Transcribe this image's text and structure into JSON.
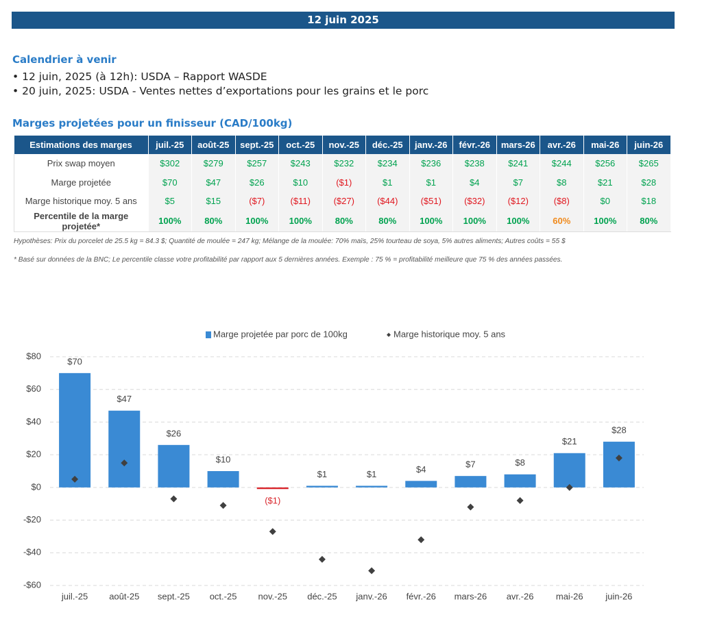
{
  "header": {
    "date": "12 juin 2025"
  },
  "calendar": {
    "title": "Calendrier à venir",
    "items": [
      "12 juin, 2025 (à 12h): USDA – Rapport WASDE",
      "20 juin, 2025: USDA - Ventes nettes d’exportations pour les grains et le porc"
    ]
  },
  "table": {
    "title": "Marges projetées pour un finisseur (CAD/100kg)",
    "columns": [
      "Estimations des marges",
      "juil.-25",
      "août-25",
      "sept.-25",
      "oct.-25",
      "nov.-25",
      "déc.-25",
      "janv.-26",
      "févr.-26",
      "mars-26",
      "avr.-26",
      "mai-26",
      "juin-26"
    ],
    "rows": [
      {
        "label": "Prix swap moyen",
        "cells": [
          "$302",
          "$279",
          "$257",
          "$243",
          "$232",
          "$234",
          "$236",
          "$238",
          "$241",
          "$244",
          "$256",
          "$265"
        ],
        "colors": [
          "#00a24f",
          "#00a24f",
          "#00a24f",
          "#00a24f",
          "#00a24f",
          "#00a24f",
          "#00a24f",
          "#00a24f",
          "#00a24f",
          "#00a24f",
          "#00a24f",
          "#00a24f"
        ]
      },
      {
        "label": "Marge projetée",
        "cells": [
          "$70",
          "$47",
          "$26",
          "$10",
          "($1)",
          "$1",
          "$1",
          "$4",
          "$7",
          "$8",
          "$21",
          "$28"
        ],
        "colors": [
          "#00a24f",
          "#00a24f",
          "#00a24f",
          "#00a24f",
          "#e0161e",
          "#00a24f",
          "#00a24f",
          "#00a24f",
          "#00a24f",
          "#00a24f",
          "#00a24f",
          "#00a24f"
        ]
      },
      {
        "label": "Marge historique moy. 5 ans",
        "cells": [
          "$5",
          "$15",
          "($7)",
          "($11)",
          "($27)",
          "($44)",
          "($51)",
          "($32)",
          "($12)",
          "($8)",
          "$0",
          "$18"
        ],
        "colors": [
          "#00a24f",
          "#00a24f",
          "#e0161e",
          "#e0161e",
          "#e0161e",
          "#e0161e",
          "#e0161e",
          "#e0161e",
          "#e0161e",
          "#e0161e",
          "#00a24f",
          "#00a24f"
        ]
      },
      {
        "label": "Percentile de la marge projetée*",
        "cells": [
          "100%",
          "80%",
          "100%",
          "100%",
          "80%",
          "80%",
          "100%",
          "100%",
          "100%",
          "60%",
          "100%",
          "80%"
        ],
        "colors": [
          "#00a24f",
          "#00a24f",
          "#00a24f",
          "#00a24f",
          "#00a24f",
          "#00a24f",
          "#00a24f",
          "#00a24f",
          "#00a24f",
          "#f08a1c",
          "#00a24f",
          "#00a24f"
        ]
      }
    ]
  },
  "notes": [
    "Hypothèses: Prix du porcelet de 25.5 kg = 84.3 $; Quantité de moulée = 247 kg; Mélange de la moulée: 70% maïs, 25% tourteau de soya, 5% autres aliments; Autres coûts = 55 $",
    "* Basé sur données de la BNC; Le percentile classe votre profitabilité par rapport aux 5 dernières années. Exemple : 75 % = profitabilité meilleure que 75 % des années passées."
  ],
  "chart_data": {
    "type": "bar",
    "categories": [
      "juil.-25",
      "août-25",
      "sept.-25",
      "oct.-25",
      "nov.-25",
      "déc.-25",
      "janv.-26",
      "févr.-26",
      "mars-26",
      "avr.-26",
      "mai-26",
      "juin-26"
    ],
    "series": [
      {
        "name": "Marge projetée par porc de 100kg",
        "type": "bar",
        "color": "#3a8ad4",
        "colors": [
          "#3a8ad4",
          "#3a8ad4",
          "#3a8ad4",
          "#3a8ad4",
          "#d9262c",
          "#3a8ad4",
          "#3a8ad4",
          "#3a8ad4",
          "#3a8ad4",
          "#3a8ad4",
          "#3a8ad4",
          "#3a8ad4"
        ],
        "values": [
          70,
          47,
          26,
          10,
          -1,
          1,
          1,
          4,
          7,
          8,
          21,
          28
        ],
        "value_labels": [
          "$70",
          "$47",
          "$26",
          "$10",
          "($1)",
          "$1",
          "$1",
          "$4",
          "$7",
          "$8",
          "$21",
          "$28"
        ]
      },
      {
        "name": "Marge historique moy. 5 ans",
        "type": "scatter",
        "color": "#404040",
        "values": [
          5,
          15,
          -7,
          -11,
          -27,
          -44,
          -51,
          -32,
          -12,
          -8,
          0,
          18
        ]
      }
    ],
    "ylim": [
      -60,
      80
    ],
    "yticks": [
      {
        "value": -60,
        "label": "-$60"
      },
      {
        "value": -40,
        "label": "-$40"
      },
      {
        "value": -20,
        "label": "-$20"
      },
      {
        "value": 0,
        "label": "$0"
      },
      {
        "value": 20,
        "label": "$20"
      },
      {
        "value": 40,
        "label": "$40"
      },
      {
        "value": 60,
        "label": "$60"
      },
      {
        "value": 80,
        "label": "$80"
      }
    ],
    "grid": true,
    "legend": "top"
  }
}
